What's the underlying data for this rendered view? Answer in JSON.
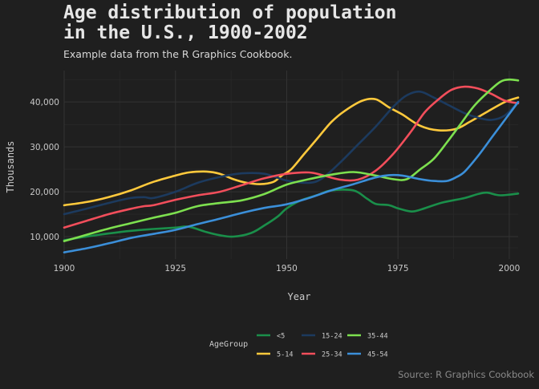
{
  "chart_data": {
    "type": "line",
    "title_line1": "Age distribution of population",
    "title_line2": "in the U.S., 1900-2002",
    "subtitle": "Example data from the R Graphics Cookbook.",
    "caption": "Source: R Graphics Cookbook",
    "xlabel": "Year",
    "ylabel": "Thousands",
    "xlim": [
      1900,
      2002
    ],
    "ylim": [
      5000,
      47000
    ],
    "x_ticks": [
      1900,
      1925,
      1950,
      1975,
      2000
    ],
    "y_ticks": [
      10000,
      20000,
      30000,
      40000
    ],
    "y_tick_labels": [
      "10,000",
      "20,000",
      "30,000",
      "40,000"
    ],
    "grid": true,
    "legend_title": "AgeGroup",
    "legend_position": "bottom",
    "series": [
      {
        "name": "<5",
        "color": "#1a8f4a",
        "points": [
          [
            1900,
            9200
          ],
          [
            1905,
            10000
          ],
          [
            1910,
            10700
          ],
          [
            1915,
            11300
          ],
          [
            1920,
            11700
          ],
          [
            1925,
            12000
          ],
          [
            1928,
            12200
          ],
          [
            1932,
            11000
          ],
          [
            1935,
            10300
          ],
          [
            1938,
            10000
          ],
          [
            1942,
            10800
          ],
          [
            1945,
            12500
          ],
          [
            1948,
            14500
          ],
          [
            1950,
            16300
          ],
          [
            1953,
            18000
          ],
          [
            1957,
            19300
          ],
          [
            1960,
            20300
          ],
          [
            1965,
            20300
          ],
          [
            1968,
            18500
          ],
          [
            1970,
            17300
          ],
          [
            1973,
            17000
          ],
          [
            1975,
            16300
          ],
          [
            1978,
            15600
          ],
          [
            1980,
            16000
          ],
          [
            1985,
            17600
          ],
          [
            1990,
            18600
          ],
          [
            1993,
            19500
          ],
          [
            1995,
            19800
          ],
          [
            1998,
            19200
          ],
          [
            2002,
            19600
          ]
        ]
      },
      {
        "name": "5-14",
        "color": "#ffc93c",
        "points": [
          [
            1900,
            17000
          ],
          [
            1905,
            17700
          ],
          [
            1910,
            18800
          ],
          [
            1915,
            20300
          ],
          [
            1920,
            22200
          ],
          [
            1925,
            23600
          ],
          [
            1928,
            24300
          ],
          [
            1932,
            24500
          ],
          [
            1935,
            24000
          ],
          [
            1938,
            22800
          ],
          [
            1941,
            22000
          ],
          [
            1944,
            21700
          ],
          [
            1947,
            22200
          ],
          [
            1949,
            23700
          ],
          [
            1951,
            25000
          ],
          [
            1954,
            28500
          ],
          [
            1957,
            32000
          ],
          [
            1960,
            35500
          ],
          [
            1963,
            38000
          ],
          [
            1967,
            40300
          ],
          [
            1970,
            40600
          ],
          [
            1973,
            38800
          ],
          [
            1976,
            37200
          ],
          [
            1980,
            34700
          ],
          [
            1984,
            33700
          ],
          [
            1988,
            34000
          ],
          [
            1991,
            35500
          ],
          [
            1995,
            37800
          ],
          [
            1999,
            40000
          ],
          [
            2002,
            41000
          ]
        ]
      },
      {
        "name": "15-24",
        "color": "#1c3a5e",
        "points": [
          [
            1900,
            15000
          ],
          [
            1905,
            16200
          ],
          [
            1910,
            17500
          ],
          [
            1915,
            18600
          ],
          [
            1918,
            18800
          ],
          [
            1920,
            18600
          ],
          [
            1925,
            20000
          ],
          [
            1930,
            22000
          ],
          [
            1935,
            23300
          ],
          [
            1940,
            24100
          ],
          [
            1945,
            24000
          ],
          [
            1950,
            22500
          ],
          [
            1955,
            22000
          ],
          [
            1958,
            23000
          ],
          [
            1962,
            26500
          ],
          [
            1966,
            30500
          ],
          [
            1970,
            34500
          ],
          [
            1974,
            39000
          ],
          [
            1977,
            41500
          ],
          [
            1980,
            42300
          ],
          [
            1983,
            41000
          ],
          [
            1986,
            39500
          ],
          [
            1990,
            37500
          ],
          [
            1993,
            36500
          ],
          [
            1996,
            36000
          ],
          [
            1999,
            37000
          ],
          [
            2002,
            40000
          ]
        ]
      },
      {
        "name": "25-34",
        "color": "#f24e5b",
        "points": [
          [
            1900,
            12000
          ],
          [
            1905,
            13500
          ],
          [
            1910,
            15000
          ],
          [
            1915,
            16200
          ],
          [
            1918,
            16800
          ],
          [
            1920,
            17000
          ],
          [
            1925,
            18200
          ],
          [
            1930,
            19200
          ],
          [
            1935,
            20000
          ],
          [
            1940,
            21500
          ],
          [
            1945,
            23000
          ],
          [
            1950,
            24000
          ],
          [
            1955,
            24300
          ],
          [
            1958,
            23700
          ],
          [
            1962,
            22700
          ],
          [
            1966,
            22700
          ],
          [
            1970,
            24700
          ],
          [
            1974,
            28500
          ],
          [
            1978,
            33500
          ],
          [
            1981,
            37700
          ],
          [
            1984,
            40500
          ],
          [
            1987,
            42700
          ],
          [
            1990,
            43400
          ],
          [
            1993,
            43000
          ],
          [
            1996,
            41800
          ],
          [
            1999,
            40300
          ],
          [
            2002,
            39700
          ]
        ]
      },
      {
        "name": "35-44",
        "color": "#7de04f",
        "points": [
          [
            1900,
            9000
          ],
          [
            1905,
            10400
          ],
          [
            1910,
            11800
          ],
          [
            1915,
            13000
          ],
          [
            1920,
            14200
          ],
          [
            1925,
            15300
          ],
          [
            1930,
            16800
          ],
          [
            1935,
            17500
          ],
          [
            1940,
            18100
          ],
          [
            1945,
            19500
          ],
          [
            1950,
            21600
          ],
          [
            1955,
            22800
          ],
          [
            1960,
            23800
          ],
          [
            1965,
            24400
          ],
          [
            1970,
            23600
          ],
          [
            1974,
            22800
          ],
          [
            1977,
            22800
          ],
          [
            1980,
            25000
          ],
          [
            1983,
            27300
          ],
          [
            1986,
            31000
          ],
          [
            1989,
            35000
          ],
          [
            1992,
            39000
          ],
          [
            1995,
            42000
          ],
          [
            1998,
            44500
          ],
          [
            2000,
            45000
          ],
          [
            2002,
            44800
          ]
        ]
      },
      {
        "name": "45-54",
        "color": "#3b8fd9",
        "points": [
          [
            1900,
            6500
          ],
          [
            1905,
            7400
          ],
          [
            1910,
            8500
          ],
          [
            1915,
            9700
          ],
          [
            1920,
            10600
          ],
          [
            1925,
            11500
          ],
          [
            1930,
            12800
          ],
          [
            1935,
            14000
          ],
          [
            1940,
            15300
          ],
          [
            1945,
            16400
          ],
          [
            1950,
            17200
          ],
          [
            1955,
            18600
          ],
          [
            1960,
            20300
          ],
          [
            1965,
            21700
          ],
          [
            1970,
            23200
          ],
          [
            1973,
            23700
          ],
          [
            1976,
            23600
          ],
          [
            1980,
            22800
          ],
          [
            1983,
            22400
          ],
          [
            1986,
            22400
          ],
          [
            1988,
            23200
          ],
          [
            1990,
            24500
          ],
          [
            1993,
            28000
          ],
          [
            1996,
            32000
          ],
          [
            1999,
            36000
          ],
          [
            2002,
            40000
          ]
        ]
      }
    ]
  }
}
